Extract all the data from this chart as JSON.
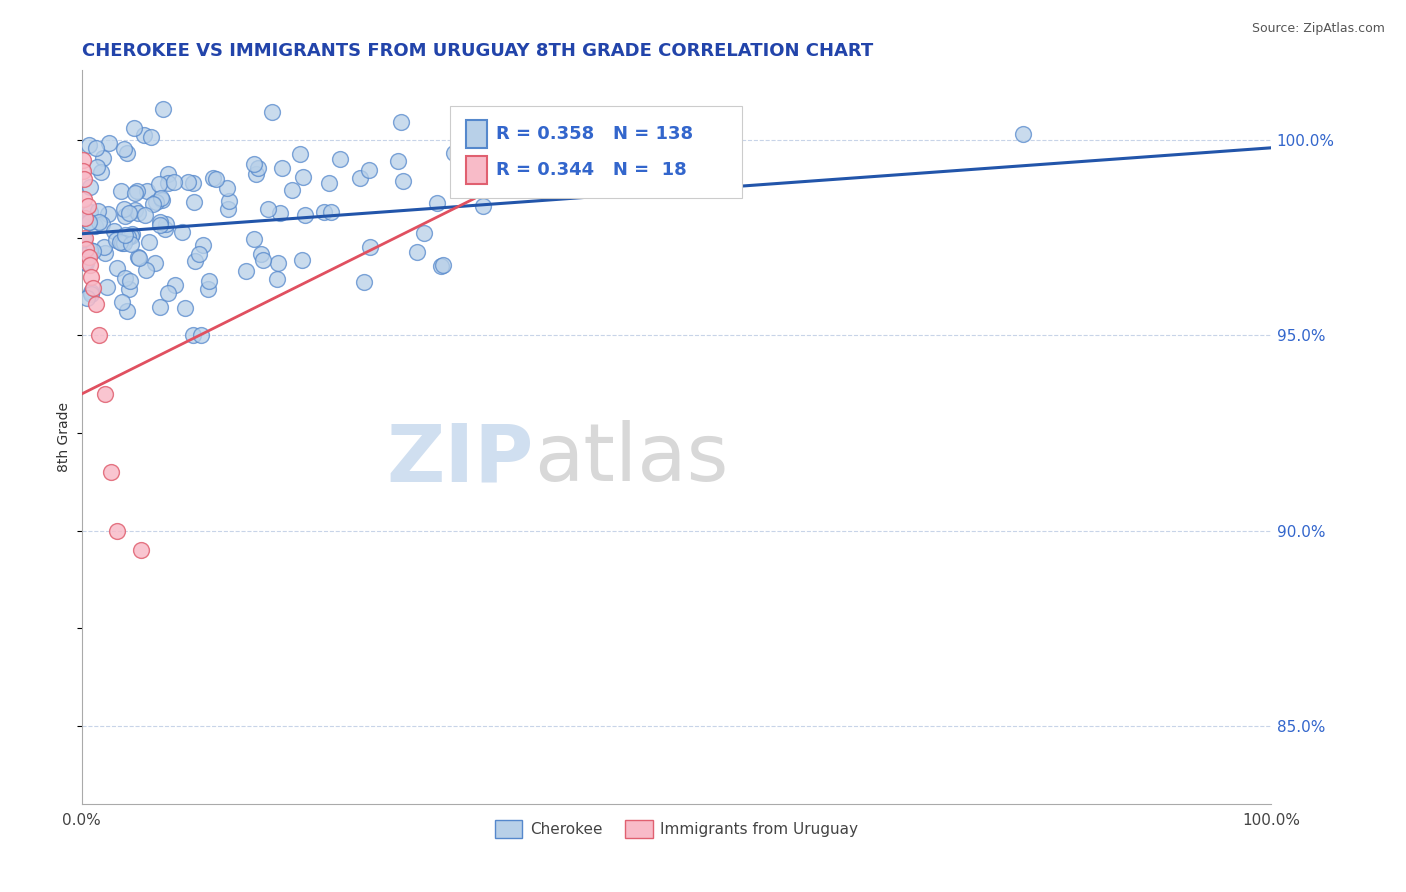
{
  "title": "CHEROKEE VS IMMIGRANTS FROM URUGUAY 8TH GRADE CORRELATION CHART",
  "source": "Source: ZipAtlas.com",
  "ylabel": "8th Grade",
  "ylabel_right_ticks": [
    85.0,
    90.0,
    95.0,
    100.0
  ],
  "xlim": [
    0.0,
    1.0
  ],
  "ylim": [
    83.0,
    101.8
  ],
  "cherokee_R": 0.358,
  "cherokee_N": 138,
  "uruguay_R": 0.344,
  "uruguay_N": 18,
  "cherokee_color": "#b8d0e8",
  "cherokee_edge_color": "#5588cc",
  "uruguay_color": "#f8bbc8",
  "uruguay_edge_color": "#e06070",
  "cherokee_line_color": "#2255aa",
  "uruguay_line_color": "#e05060",
  "background_color": "#ffffff",
  "grid_color": "#c8d4e8",
  "title_color": "#2244aa",
  "right_tick_color": "#3366cc",
  "source_color": "#555555"
}
